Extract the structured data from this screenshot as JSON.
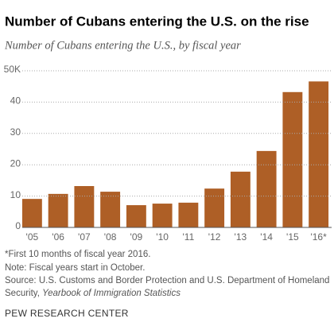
{
  "chart_data": {
    "type": "bar",
    "title": "Number of Cubans entering the U.S. on the rise",
    "subtitle": "Number of Cubans entering the U.S., by fiscal year",
    "categories": [
      "'05",
      "'06",
      "'07",
      "'08",
      "'09",
      "'10",
      "'11",
      "'12",
      "'13",
      "'14",
      "'15",
      "'16*"
    ],
    "values": [
      9.1,
      10.7,
      13.2,
      11.4,
      7.1,
      7.6,
      7.9,
      12.4,
      17.8,
      24.4,
      43.2,
      46.6
    ],
    "color": "#ae5f26",
    "ylim": [
      0,
      50
    ],
    "yticks": [
      0,
      10,
      20,
      30,
      40,
      {
        "value": 50,
        "label": "50K"
      }
    ],
    "grid": true,
    "notes": [
      "*First 10 months of fiscal year 2016.",
      "Note: Fiscal years start in October."
    ],
    "source": [
      "Source: U.S. Customs and Border Protection and U.S. Department of Homeland",
      "Security,"
    ],
    "source_publication": "Yearbook of Immigration Statistics",
    "credit": "PEW RESEARCH CENTER"
  }
}
